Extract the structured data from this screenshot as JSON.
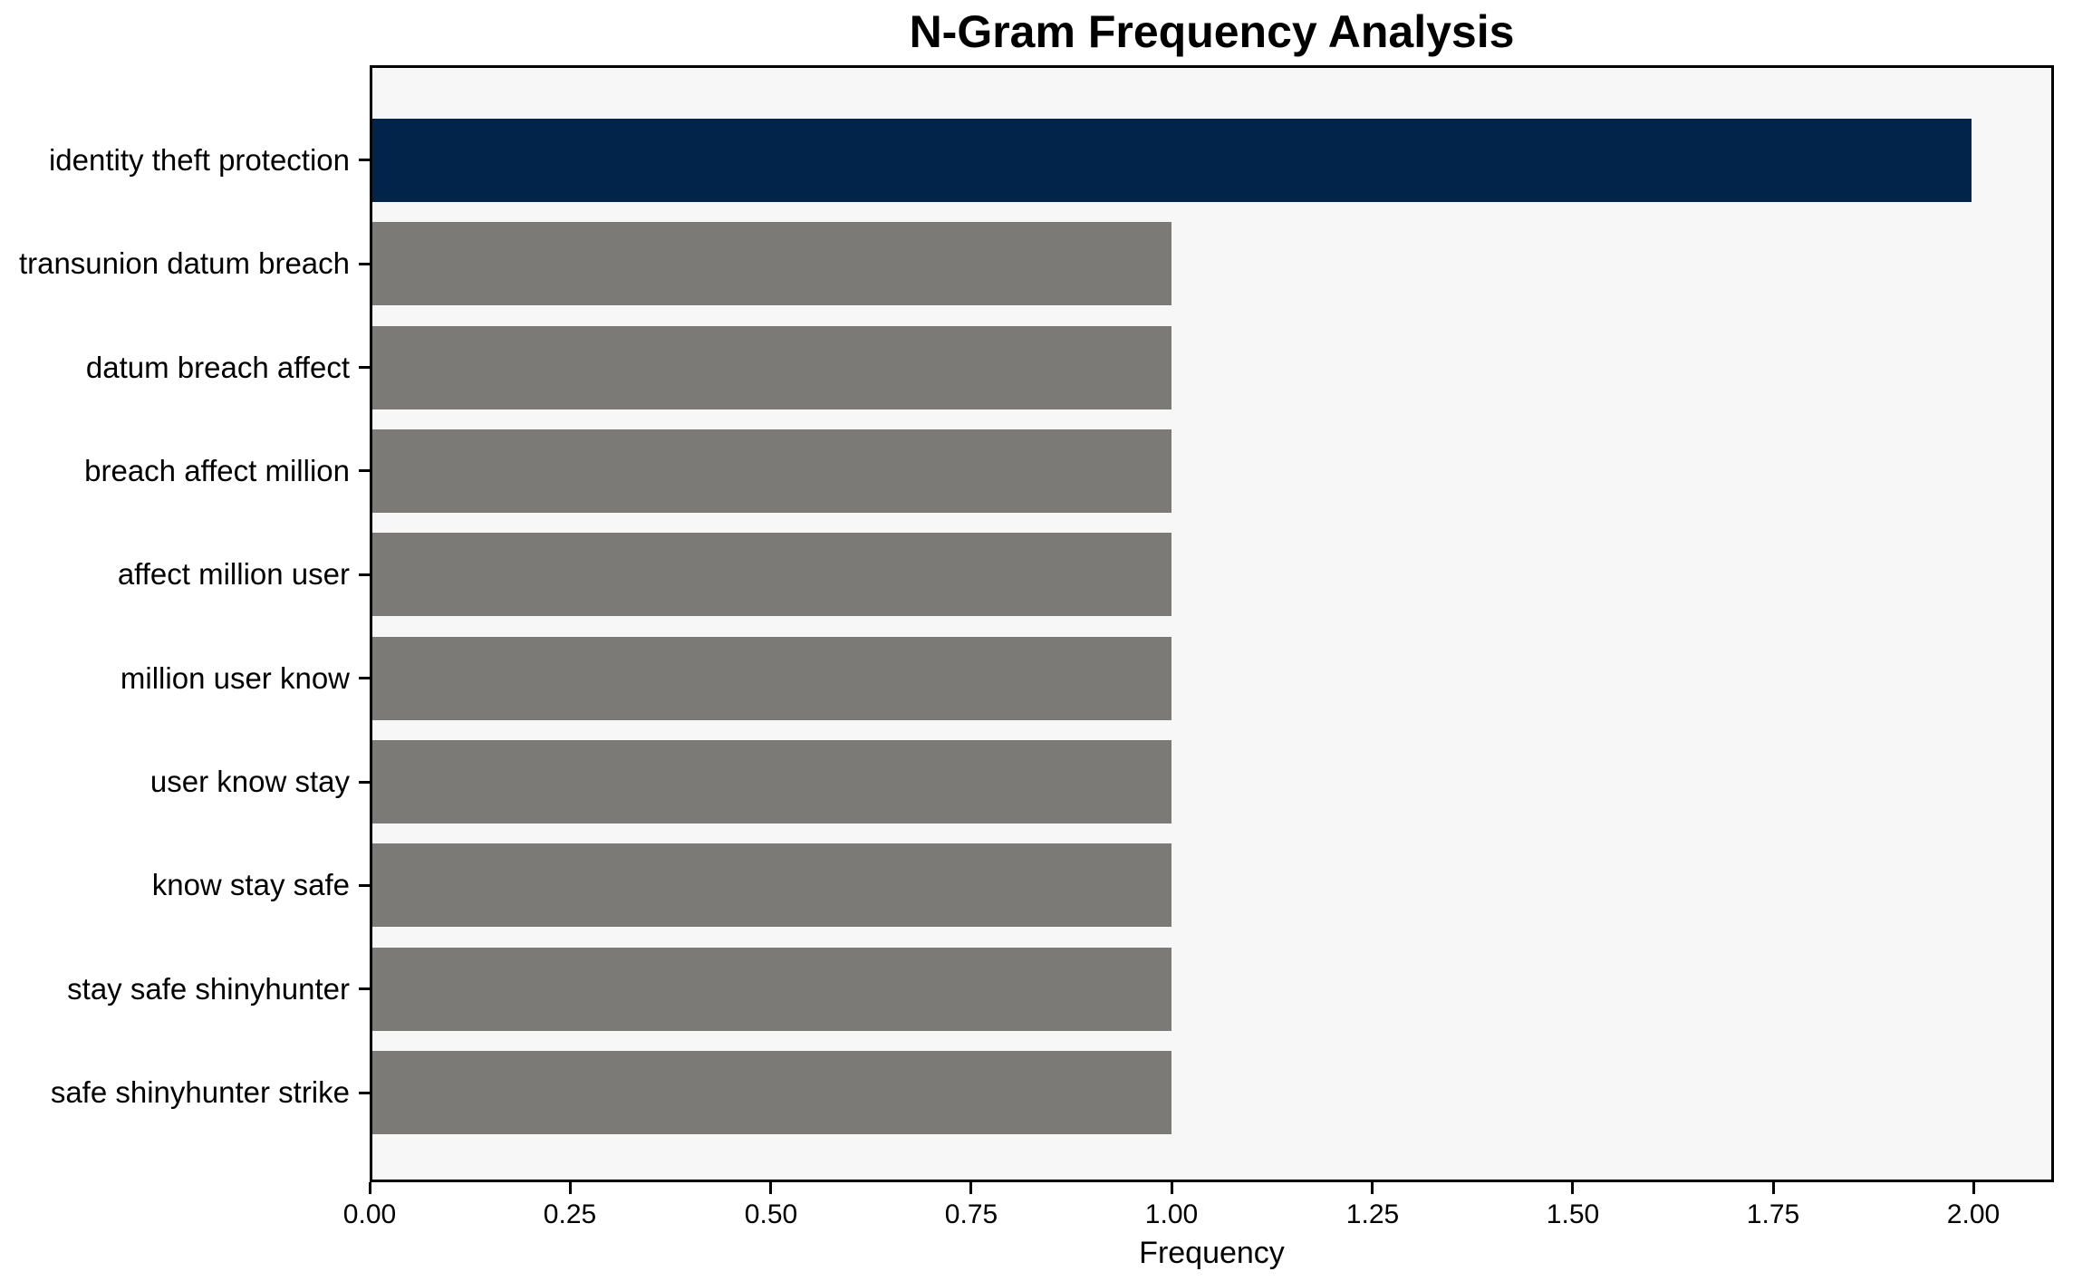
{
  "chart_data": {
    "type": "bar",
    "orientation": "horizontal",
    "title": "N-Gram Frequency Analysis",
    "xlabel": "Frequency",
    "ylabel": "",
    "categories": [
      "identity theft protection",
      "transunion datum breach",
      "datum breach affect",
      "breach affect million",
      "affect million user",
      "million user know",
      "user know stay",
      "know stay safe",
      "stay safe shinyhunter",
      "safe shinyhunter strike"
    ],
    "values": [
      2,
      1,
      1,
      1,
      1,
      1,
      1,
      1,
      1,
      1
    ],
    "highlight_index": 0,
    "xlim": [
      0,
      2.1
    ],
    "xtick_values": [
      0,
      0.25,
      0.5,
      0.75,
      1.0,
      1.25,
      1.5,
      1.75,
      2.0
    ],
    "xtick_labels": [
      "0.00",
      "0.25",
      "0.50",
      "0.75",
      "1.00",
      "1.25",
      "1.50",
      "1.75",
      "2.00"
    ],
    "grid": false,
    "legend": null,
    "colors": {
      "highlight_bar": "#02234a",
      "bar": "#7b7a77",
      "plot_background": "#f7f7f7",
      "figure_background": "#ffffff",
      "spine": "#000000",
      "text": "#000000"
    }
  }
}
